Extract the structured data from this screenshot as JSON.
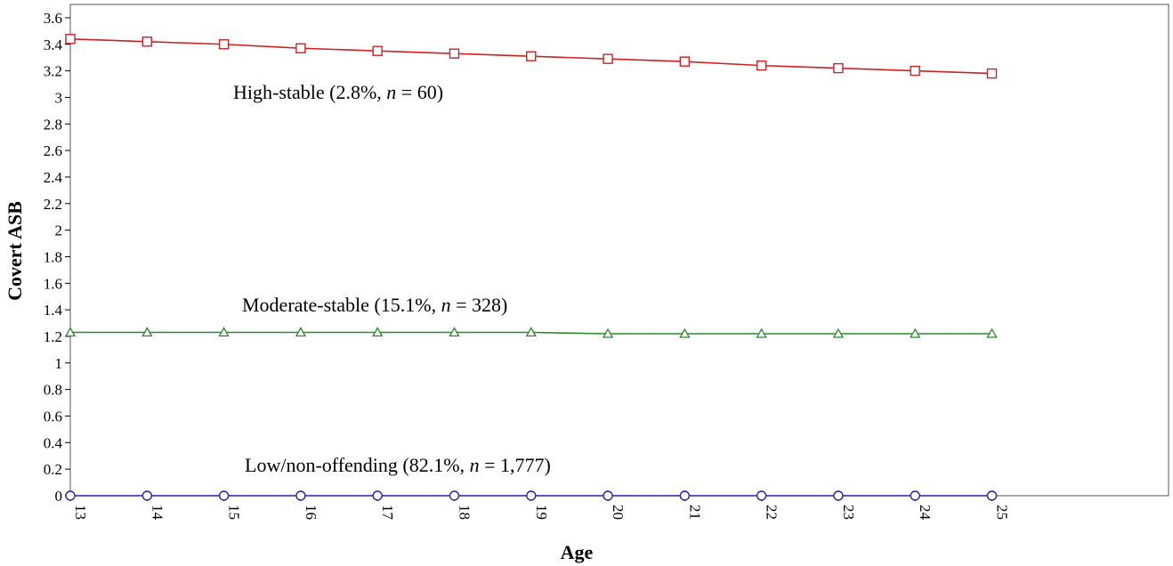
{
  "chart_data": {
    "type": "line",
    "title": "",
    "xlabel": "Age",
    "ylabel": "Covert ASB",
    "x": [
      13,
      14,
      15,
      16,
      17,
      18,
      19,
      20,
      21,
      22,
      23,
      24,
      25
    ],
    "xlim": [
      13,
      27.3
    ],
    "ylim": [
      0,
      3.7
    ],
    "yticks": [
      "0",
      "0.2",
      "0.4",
      "0.6",
      "0.8",
      "1",
      "1.2",
      "1.4",
      "1.6",
      "1.8",
      "2",
      "2.2",
      "2.4",
      "2.6",
      "2.8",
      "3",
      "3.2",
      "3.4",
      "3.6"
    ],
    "xticks": [
      "13",
      "14",
      "15",
      "16",
      "17",
      "18",
      "19",
      "20",
      "21",
      "22",
      "23",
      "24",
      "25"
    ],
    "grid": false,
    "legend": "none",
    "series": [
      {
        "label_prefix": "High-stable (2.8%, ",
        "label_n": "n",
        "label_suffix": " = 60)",
        "marker": "square",
        "color": "#cc2222",
        "values": [
          3.44,
          3.42,
          3.4,
          3.37,
          3.35,
          3.33,
          3.31,
          3.29,
          3.27,
          3.24,
          3.22,
          3.2,
          3.18
        ]
      },
      {
        "label_prefix": "Moderate-stable (15.1%, ",
        "label_n": "n",
        "label_suffix": " = 328)",
        "marker": "triangle",
        "color": "#2a8a2a",
        "values": [
          1.23,
          1.23,
          1.23,
          1.23,
          1.23,
          1.23,
          1.23,
          1.22,
          1.22,
          1.22,
          1.22,
          1.22,
          1.22
        ]
      },
      {
        "label_prefix": "Low/non-offending (82.1%, ",
        "label_n": "n",
        "label_suffix": " = 1,777)",
        "marker": "circle",
        "color": "#2222aa",
        "values": [
          0,
          0,
          0,
          0,
          0,
          0,
          0,
          0,
          0,
          0,
          0,
          0,
          0
        ]
      }
    ]
  }
}
